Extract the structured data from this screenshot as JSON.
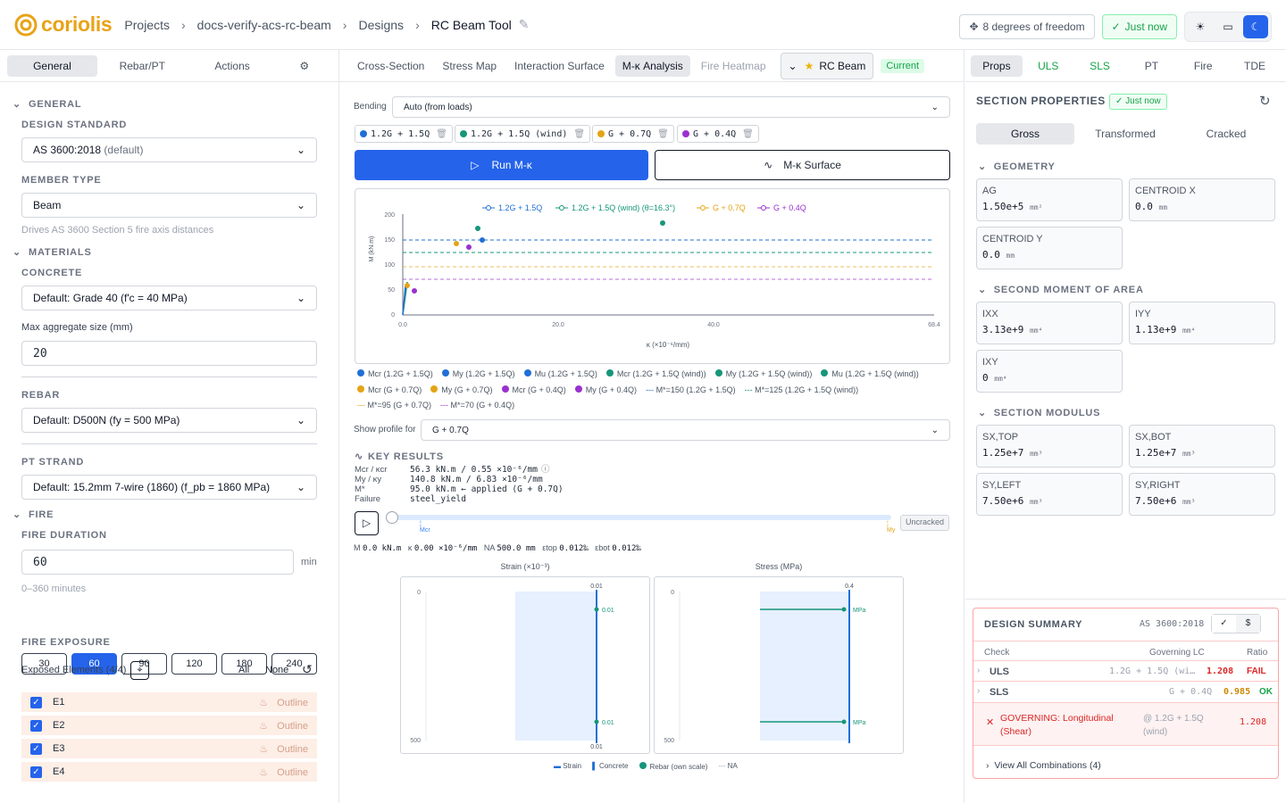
{
  "header": {
    "app": "coriolis",
    "crumbs": [
      "Projects",
      "docs-verify-acs-rc-beam",
      "Designs"
    ],
    "current": "RC Beam Tool",
    "dof": "8 degrees of freedom",
    "saved": "Just now"
  },
  "left": {
    "tabs": [
      "General",
      "Rebar/PT",
      "Actions"
    ],
    "general": "GENERAL",
    "design_standard_label": "DESIGN STANDARD",
    "design_standard": "AS 3600:2018",
    "design_standard_suffix": "(default)",
    "member_type_label": "MEMBER TYPE",
    "member_type": "Beam",
    "member_hint": "Drives AS 3600 Section 5 fire axis distances",
    "materials": "MATERIALS",
    "concrete_label": "CONCRETE",
    "concrete": "Default: Grade 40 (f'c = 40 MPa)",
    "agg_label": "Max aggregate size (mm)",
    "agg": "20",
    "rebar_label": "REBAR",
    "rebar": "Default: D500N (fy = 500 MPa)",
    "pt_label": "PT STRAND",
    "pt": "Default: 15.2mm 7-wire (1860) (f_pb = 1860 MPa)",
    "fire": "FIRE",
    "fire_dur_label": "FIRE DURATION",
    "fire_dur": "60",
    "fire_unit": "min",
    "fire_hint": "0–360 minutes",
    "fire_opts": [
      "30",
      "60",
      "90",
      "120",
      "180",
      "240"
    ],
    "exposure_label": "FIRE EXPOSURE",
    "exposed": "Exposed Elements (4/4)",
    "all": "All",
    "none": "None",
    "elements": [
      "E1",
      "E2",
      "E3",
      "E4"
    ],
    "outline": "Outline"
  },
  "center": {
    "tabs": [
      "Cross-Section",
      "Stress Map",
      "Interaction Surface",
      "M-κ Analysis",
      "Fire Heatmap"
    ],
    "member": "RC Beam",
    "status": "Current",
    "bending_label": "Bending",
    "bending": "Auto (from loads)",
    "chips": [
      {
        "t": "1.2G + 1.5Q",
        "c": "#1f6fd6"
      },
      {
        "t": "1.2G + 1.5Q (wind)",
        "c": "#16967a"
      },
      {
        "t": "G + 0.7Q",
        "c": "#e3a416"
      },
      {
        "t": "G + 0.4Q",
        "c": "#9b30d0"
      }
    ],
    "run": "Run M-κ",
    "surface": "M-κ Surface",
    "legend_top": [
      "1.2G + 1.5Q",
      "1.2G + 1.5Q (wind) (θ=16.3°)",
      "G + 0.7Q",
      "G + 0.4Q"
    ],
    "ylabel": "M (kN.m)",
    "xlabel": "κ (×10⁻⁶/mm)",
    "legend_rows": [
      [
        "Mcr (1.2G + 1.5Q)",
        "My (1.2G + 1.5Q)",
        "Mu (1.2G + 1.5Q)",
        "Mcr (1.2G + 1.5Q (wind))",
        "My (1.2G + 1.5Q (wind))",
        "Mu (1.2G + 1.5Q (wind))"
      ],
      [
        "Mcr (G + 0.7Q)",
        "My (G + 0.7Q)",
        "Mcr (G + 0.4Q)",
        "My (G + 0.4Q)",
        "M*=150 (1.2G + 1.5Q)",
        "M*=125 (1.2G + 1.5Q (wind))"
      ],
      [
        "M*=95 (G + 0.7Q)",
        "M*=70 (G + 0.4Q)"
      ]
    ],
    "profile_label": "Show profile for",
    "profile": "G + 0.7Q",
    "key_results": "KEY RESULTS",
    "kr": [
      [
        "Mcr / κcr",
        "56.3 kN.m / 0.55 ×10⁻⁶/mm"
      ],
      [
        "My / κy",
        "140.8 kN.m / 6.83 ×10⁻⁶/mm"
      ],
      [
        "M*",
        "95.0 kN.m ← applied (G + 0.7Q)"
      ],
      [
        "Failure",
        "steel_yield"
      ]
    ],
    "uncracked": "Uncracked",
    "mcr": "Mcr",
    "my": "My",
    "readout": {
      "m": "0.0 kN.m",
      "k": "0.00 ×10⁻⁶/mm",
      "na": "500.0 mm",
      "etop": "0.012‰",
      "ebot": "0.012‰"
    },
    "strain_title": "Strain (×10⁻³)",
    "stress_title": "Stress (MPa)",
    "bottom_legend": [
      "Strain",
      "Concrete",
      "Rebar (own scale)",
      "NA"
    ]
  },
  "right": {
    "tabs": [
      "Props",
      "ULS",
      "SLS",
      "PT",
      "Fire",
      "TDE"
    ],
    "title": "SECTION PROPERTIES",
    "saved": "Just now",
    "seg": [
      "Gross",
      "Transformed",
      "Cracked"
    ],
    "geometry": "GEOMETRY",
    "second": "SECOND MOMENT OF AREA",
    "modulus": "SECTION MODULUS",
    "cards": [
      {
        "l": "AG",
        "v": "1.50e+5",
        "u": "mm²"
      },
      {
        "l": "CENTROID X",
        "v": "0.0",
        "u": "mm"
      },
      {
        "l": "CENTROID Y",
        "v": "0.0",
        "u": "mm"
      },
      {
        "l": "IXX",
        "v": "3.13e+9",
        "u": "mm⁴"
      },
      {
        "l": "IYY",
        "v": "1.13e+9",
        "u": "mm⁴"
      },
      {
        "l": "IXY",
        "v": "0",
        "u": "mm⁴"
      },
      {
        "l": "SX,TOP",
        "v": "1.25e+7",
        "u": "mm³"
      },
      {
        "l": "SX,BOT",
        "v": "1.25e+7",
        "u": "mm³"
      },
      {
        "l": "SY,LEFT",
        "v": "7.50e+6",
        "u": "mm³"
      },
      {
        "l": "SY,RIGHT",
        "v": "7.50e+6",
        "u": "mm³"
      }
    ],
    "ds_title": "DESIGN SUMMARY",
    "ds_std": "AS 3600:2018",
    "cols": [
      "Check",
      "Governing LC",
      "Ratio"
    ],
    "rows": [
      {
        "c": "ULS",
        "lc": "1.2G + 1.5Q (wi…",
        "r": "1.208",
        "s": "FAIL"
      },
      {
        "c": "SLS",
        "lc": "G + 0.4Q",
        "r": "0.985",
        "s": "OK"
      }
    ],
    "gov": "GOVERNING: Longitudinal (Shear)",
    "gov_lc": "@ 1.2G + 1.5Q (wind)",
    "gov_r": "1.208",
    "view_all": "View All Combinations (4)"
  }
}
